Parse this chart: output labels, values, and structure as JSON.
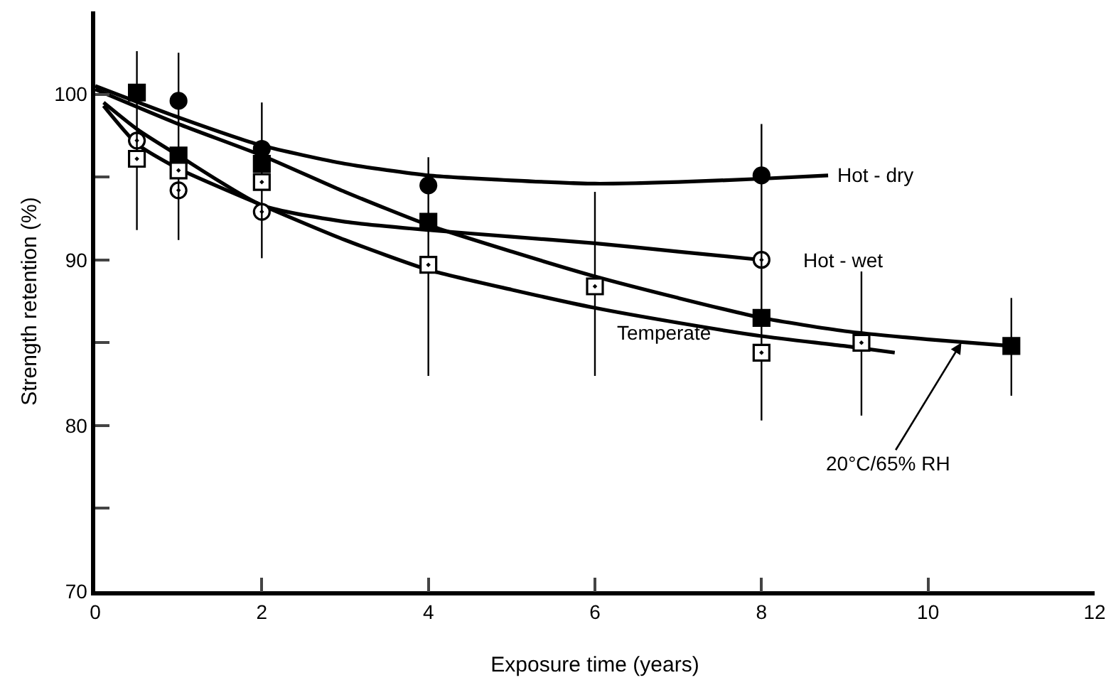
{
  "chart_data": {
    "type": "scatter",
    "xlabel": "Exposure time (years)",
    "ylabel": "Strength retention (%)",
    "xlim": [
      0,
      12
    ],
    "xticks": [
      0,
      2,
      4,
      6,
      8,
      10,
      12
    ],
    "ylim": [
      70,
      105
    ],
    "yticks": [
      70,
      {
        "value": 75,
        "label": null
      },
      80,
      {
        "value": 85,
        "label": null
      },
      90,
      {
        "value": 95,
        "label": null
      },
      100
    ],
    "grid": false,
    "series": [
      {
        "type": "scatter",
        "marker": "circle",
        "color": "#000000",
        "x": [
          1,
          2,
          4,
          8
        ],
        "values": [
          99.6,
          96.7,
          94.5,
          95.1
        ]
      },
      {
        "type": "scatter",
        "marker": "circle",
        "color": "#000000",
        "x": [
          0.5,
          1,
          2,
          4,
          8
        ],
        "values": [
          97.2,
          94.2,
          92.9,
          null,
          90.0
        ]
      },
      {
        "type": "scatter",
        "marker": "square",
        "color": "#000000",
        "x": [
          0.5,
          1,
          2,
          4,
          8,
          11
        ],
        "values": [
          100.1,
          96.3,
          95.8,
          92.3,
          86.5,
          84.8
        ],
        "errors": [
          null,
          null,
          null,
          null,
          null,
          [
            81.8,
            87.7
          ]
        ]
      },
      {
        "type": "scatter",
        "marker": "square",
        "color": "#000000",
        "x": [
          0.5,
          1,
          2,
          4,
          6,
          8,
          9.2
        ],
        "values": [
          96.1,
          95.4,
          94.7,
          89.7,
          88.4,
          84.4,
          85.0
        ],
        "errors": [
          [
            91.8,
            102.6
          ],
          [
            91.2,
            102.5
          ],
          [
            90.1,
            99.5
          ],
          [
            83.0,
            96.2
          ],
          [
            83.0,
            94.1
          ],
          [
            80.3,
            98.2
          ],
          [
            80.6,
            89.3
          ]
        ]
      },
      {
        "type": "line",
        "marker": "none",
        "color": "#000000",
        "x": [
          0,
          1,
          2,
          3,
          4,
          5,
          6,
          7,
          8,
          8.8
        ],
        "values": [
          100.5,
          98.6,
          96.9,
          95.8,
          95.1,
          94.8,
          94.6,
          94.7,
          94.9,
          95.1
        ]
      },
      {
        "type": "line",
        "marker": "none",
        "color": "#000000",
        "x": [
          0.1,
          0.5,
          1,
          2,
          3,
          4,
          5,
          6,
          7,
          8
        ],
        "values": [
          99.5,
          97.9,
          96.3,
          93.3,
          92.3,
          91.8,
          91.4,
          91.0,
          90.5,
          90.0
        ]
      },
      {
        "type": "line",
        "marker": "none",
        "color": "#000000",
        "x": [
          0,
          1,
          2,
          3,
          4,
          5,
          6,
          7,
          8,
          9,
          10,
          11
        ],
        "values": [
          100.3,
          98.2,
          96.3,
          94.1,
          92.1,
          90.5,
          89.0,
          87.7,
          86.5,
          85.7,
          85.2,
          84.8
        ]
      },
      {
        "type": "line",
        "marker": "none",
        "color": "#000000",
        "x": [
          0.1,
          0.5,
          1,
          2,
          3,
          4,
          5,
          6,
          7,
          8,
          9,
          9.6
        ],
        "values": [
          99.3,
          97.0,
          95.5,
          93.3,
          91.2,
          89.4,
          88.2,
          87.1,
          86.2,
          85.4,
          84.8,
          84.4
        ]
      }
    ],
    "annotations": [
      {
        "text": "Hot - dry",
        "x": 8.8,
        "y": 95.1
      },
      {
        "text": "Hot - wet",
        "x": 8,
        "y": 90.0
      },
      {
        "text": "Temperate",
        "x": 8,
        "y": 84.4
      },
      {
        "text": "20°C/65% RH",
        "x": 10.4,
        "y": 85.0
      }
    ]
  }
}
